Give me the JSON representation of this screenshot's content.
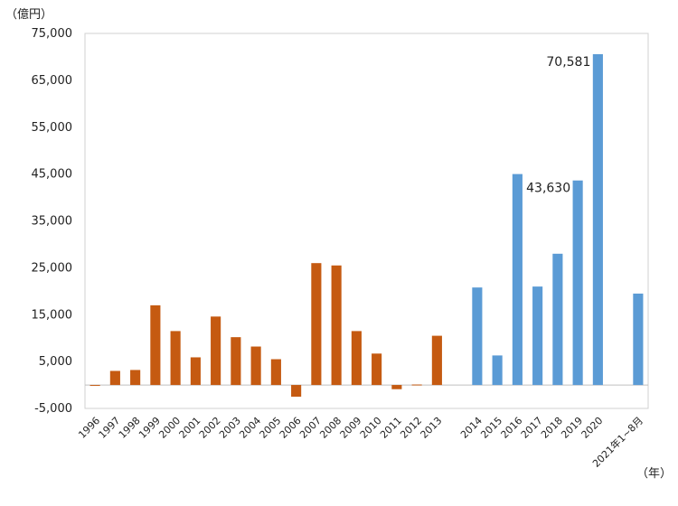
{
  "chart_data": {
    "type": "bar",
    "title": "",
    "ylabel": "（億円）",
    "xlabel": "（年）",
    "ylim": [
      -5000,
      75000
    ],
    "yticks": [
      "-5,000",
      "5,000",
      "15,000",
      "25,000",
      "35,000",
      "45,000",
      "55,000",
      "65,000",
      "75,000"
    ],
    "grid": false,
    "legend": "none",
    "categories": [
      "1996",
      "1997",
      "1998",
      "1999",
      "2000",
      "2001",
      "2002",
      "2003",
      "2004",
      "2005",
      "2006",
      "2007",
      "2008",
      "2009",
      "2010",
      "2011",
      "2012",
      "2013",
      "",
      "2014",
      "2015",
      "2016",
      "2017",
      "2018",
      "2019",
      "2020",
      "",
      "2021年1~8月"
    ],
    "values": [
      0,
      3000,
      3200,
      17000,
      11500,
      5900,
      14600,
      10200,
      8200,
      5500,
      -2500,
      26000,
      25500,
      11500,
      6700,
      -900,
      100,
      10500,
      null,
      20800,
      6300,
      45000,
      21000,
      28000,
      43630,
      70581,
      null,
      19500
    ],
    "colors": {
      "period1": "#c55a11",
      "period2": "#5b9bd5"
    },
    "color_groups": [
      "period1",
      "period1",
      "period1",
      "period1",
      "period1",
      "period1",
      "period1",
      "period1",
      "period1",
      "period1",
      "period1",
      "period1",
      "period1",
      "period1",
      "period1",
      "period1",
      "period1",
      "period1",
      null,
      "period2",
      "period2",
      "period2",
      "period2",
      "period2",
      "period2",
      "period2",
      null,
      "period2"
    ],
    "annotations": [
      {
        "category": "2020",
        "text": "70,581"
      },
      {
        "category": "2019",
        "text": "43,630"
      }
    ]
  }
}
